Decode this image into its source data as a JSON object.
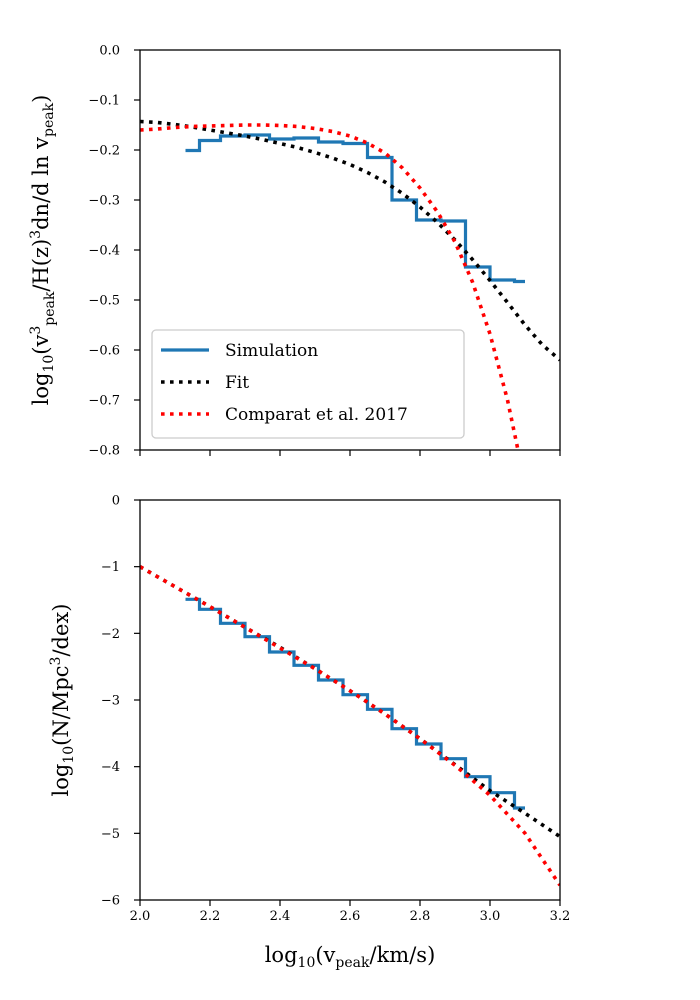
{
  "chart_data": [
    {
      "type": "line",
      "xlim": [
        2.0,
        3.2
      ],
      "ylim": [
        -0.8,
        0.0
      ],
      "xticks": [
        2.0,
        2.2,
        2.4,
        2.6,
        2.8,
        3.0,
        3.2
      ],
      "yticks": [
        0.0,
        -0.1,
        -0.2,
        -0.3,
        -0.4,
        -0.5,
        -0.6,
        -0.7,
        -0.8
      ],
      "ytick_labels": [
        "0.0",
        "−0.1",
        "−0.2",
        "−0.3",
        "−0.4",
        "−0.5",
        "−0.6",
        "−0.7",
        "−0.8"
      ],
      "show_x_tick_labels": false,
      "grid": false,
      "legend": "lower-left",
      "ylabel": {
        "prefix": "log",
        "sub1": "10",
        "p1": "(v",
        "sup1": "3",
        "sub2": "peak",
        "p2": "/H(z)",
        "sup2": "3",
        "p3": "dn/d ln v",
        "sub3": "peak",
        "p4": ")"
      },
      "series": [
        {
          "name": "Simulation",
          "style": "step",
          "color": "#1f77b4",
          "edges": [
            2.13,
            2.17,
            2.23,
            2.3,
            2.37,
            2.44,
            2.51,
            2.58,
            2.65,
            2.72,
            2.79,
            2.86,
            2.93,
            3.0,
            3.07,
            3.1
          ],
          "values": [
            -0.201,
            -0.181,
            -0.172,
            -0.17,
            -0.178,
            -0.176,
            -0.184,
            -0.187,
            -0.215,
            -0.3,
            -0.34,
            -0.342,
            -0.434,
            -0.46,
            -0.463
          ]
        },
        {
          "name": "Fit",
          "style": "dotted",
          "color": "#000000",
          "x": [
            2.0,
            2.05,
            2.1,
            2.15,
            2.2,
            2.25,
            2.3,
            2.35,
            2.4,
            2.45,
            2.5,
            2.55,
            2.6,
            2.65,
            2.7,
            2.75,
            2.8,
            2.85,
            2.9,
            2.95,
            3.0,
            3.05,
            3.1,
            3.15,
            3.2
          ],
          "y": [
            -0.143,
            -0.145,
            -0.149,
            -0.154,
            -0.16,
            -0.166,
            -0.172,
            -0.179,
            -0.187,
            -0.195,
            -0.205,
            -0.216,
            -0.229,
            -0.245,
            -0.264,
            -0.287,
            -0.314,
            -0.345,
            -0.38,
            -0.419,
            -0.461,
            -0.505,
            -0.55,
            -0.59,
            -0.62
          ]
        },
        {
          "name": "Comparat et al. 2017",
          "style": "dotted",
          "color": "#ff0000",
          "x": [
            2.0,
            2.05,
            2.1,
            2.15,
            2.2,
            2.25,
            2.3,
            2.35,
            2.4,
            2.45,
            2.5,
            2.55,
            2.6,
            2.65,
            2.7,
            2.75,
            2.8,
            2.85,
            2.9,
            2.95,
            3.0,
            3.05,
            3.08
          ],
          "y": [
            -0.16,
            -0.158,
            -0.155,
            -0.153,
            -0.152,
            -0.151,
            -0.15,
            -0.15,
            -0.151,
            -0.153,
            -0.157,
            -0.163,
            -0.172,
            -0.186,
            -0.206,
            -0.236,
            -0.276,
            -0.324,
            -0.384,
            -0.464,
            -0.568,
            -0.7,
            -0.8
          ]
        }
      ]
    },
    {
      "type": "line",
      "xlim": [
        2.0,
        3.2
      ],
      "ylim": [
        -6,
        0
      ],
      "xticks": [
        2.0,
        2.2,
        2.4,
        2.6,
        2.8,
        3.0,
        3.2
      ],
      "xtick_labels": [
        "2.0",
        "2.2",
        "2.4",
        "2.6",
        "2.8",
        "3.0",
        "3.2"
      ],
      "yticks": [
        0,
        -1,
        -2,
        -3,
        -4,
        -5,
        -6
      ],
      "ytick_labels": [
        "0",
        "−1",
        "−2",
        "−3",
        "−4",
        "−5",
        "−6"
      ],
      "show_x_tick_labels": true,
      "grid": false,
      "xlabel": {
        "prefix": "log",
        "sub1": "10",
        "p1": "(v",
        "sub2": "peak",
        "p2": "/km/s)"
      },
      "ylabel": {
        "prefix": "log",
        "sub1": "10",
        "p1": "(N/Mpc",
        "sup1": "3",
        "p2": "/dex)"
      },
      "series": [
        {
          "style": "step",
          "color": "#1f77b4",
          "edges": [
            2.13,
            2.17,
            2.23,
            2.3,
            2.37,
            2.44,
            2.51,
            2.58,
            2.65,
            2.72,
            2.79,
            2.86,
            2.93,
            3.0,
            3.07,
            3.1
          ],
          "values": [
            -1.49,
            -1.64,
            -1.85,
            -2.05,
            -2.28,
            -2.48,
            -2.7,
            -2.92,
            -3.14,
            -3.43,
            -3.66,
            -3.88,
            -4.15,
            -4.39,
            -4.62
          ]
        },
        {
          "style": "dotted",
          "color": "#000000",
          "x": [
            2.0,
            2.1,
            2.2,
            2.3,
            2.4,
            2.5,
            2.6,
            2.7,
            2.8,
            2.9,
            3.0,
            3.1,
            3.2
          ],
          "y": [
            -1.0,
            -1.3,
            -1.6,
            -1.91,
            -2.21,
            -2.53,
            -2.86,
            -3.21,
            -3.58,
            -3.97,
            -4.36,
            -4.7,
            -5.05
          ]
        },
        {
          "style": "dotted",
          "color": "#ff0000",
          "x": [
            2.0,
            2.1,
            2.2,
            2.3,
            2.4,
            2.5,
            2.6,
            2.7,
            2.8,
            2.9,
            3.0,
            3.1,
            3.2
          ],
          "y": [
            -1.0,
            -1.3,
            -1.6,
            -1.91,
            -2.22,
            -2.53,
            -2.86,
            -3.21,
            -3.58,
            -3.98,
            -4.43,
            -5.0,
            -5.78
          ]
        }
      ]
    }
  ]
}
